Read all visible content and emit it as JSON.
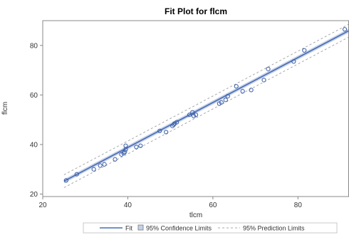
{
  "chart_data": {
    "type": "scatter",
    "title": "Fit Plot for flcm",
    "xlabel": "tlcm",
    "ylabel": "flcm",
    "xlim": [
      20,
      92
    ],
    "ylim": [
      19,
      90
    ],
    "x_ticks": [
      20,
      40,
      60,
      80
    ],
    "y_ticks": [
      20,
      40,
      60,
      80
    ],
    "grid": false,
    "legend_position": "bottom",
    "colors": {
      "fit": "#4a6bb0",
      "points": "#3a5ea8",
      "confidence_band": "#c5d2ea",
      "prediction": "#a8a8a8",
      "frame": "#888888"
    },
    "legend": [
      {
        "key": "fit",
        "label": "Fit"
      },
      {
        "key": "confidence",
        "label": "95% Confidence Limits"
      },
      {
        "key": "prediction",
        "label": "95% Prediction Limits"
      }
    ],
    "fit_line": {
      "x": [
        25,
        92
      ],
      "y": [
        25.2,
        86.0
      ]
    },
    "confidence_half_width": 0.8,
    "prediction_half_width": 2.6,
    "series": [
      {
        "name": "Observations",
        "points": [
          [
            25.5,
            25.5
          ],
          [
            28,
            28
          ],
          [
            32,
            30
          ],
          [
            33.5,
            31.5
          ],
          [
            34.5,
            32
          ],
          [
            37,
            34
          ],
          [
            38.5,
            36
          ],
          [
            39,
            36.5
          ],
          [
            39.3,
            37
          ],
          [
            39.5,
            38
          ],
          [
            39.5,
            39.5
          ],
          [
            42,
            39
          ],
          [
            43,
            39.5
          ],
          [
            47.5,
            45.5
          ],
          [
            49,
            45
          ],
          [
            50.5,
            47.5
          ],
          [
            51,
            48.5
          ],
          [
            51.5,
            49
          ],
          [
            50.8,
            48
          ],
          [
            54.5,
            52
          ],
          [
            55.2,
            53
          ],
          [
            55.5,
            51.5
          ],
          [
            56,
            52
          ],
          [
            61.5,
            56.5
          ],
          [
            62,
            57
          ],
          [
            63,
            58
          ],
          [
            63.5,
            59.5
          ],
          [
            65.5,
            63.5
          ],
          [
            67,
            61.5
          ],
          [
            69,
            62
          ],
          [
            72,
            66
          ],
          [
            73,
            70.5
          ],
          [
            79,
            73.5
          ],
          [
            81.5,
            78
          ],
          [
            91,
            86.5
          ]
        ]
      }
    ]
  }
}
